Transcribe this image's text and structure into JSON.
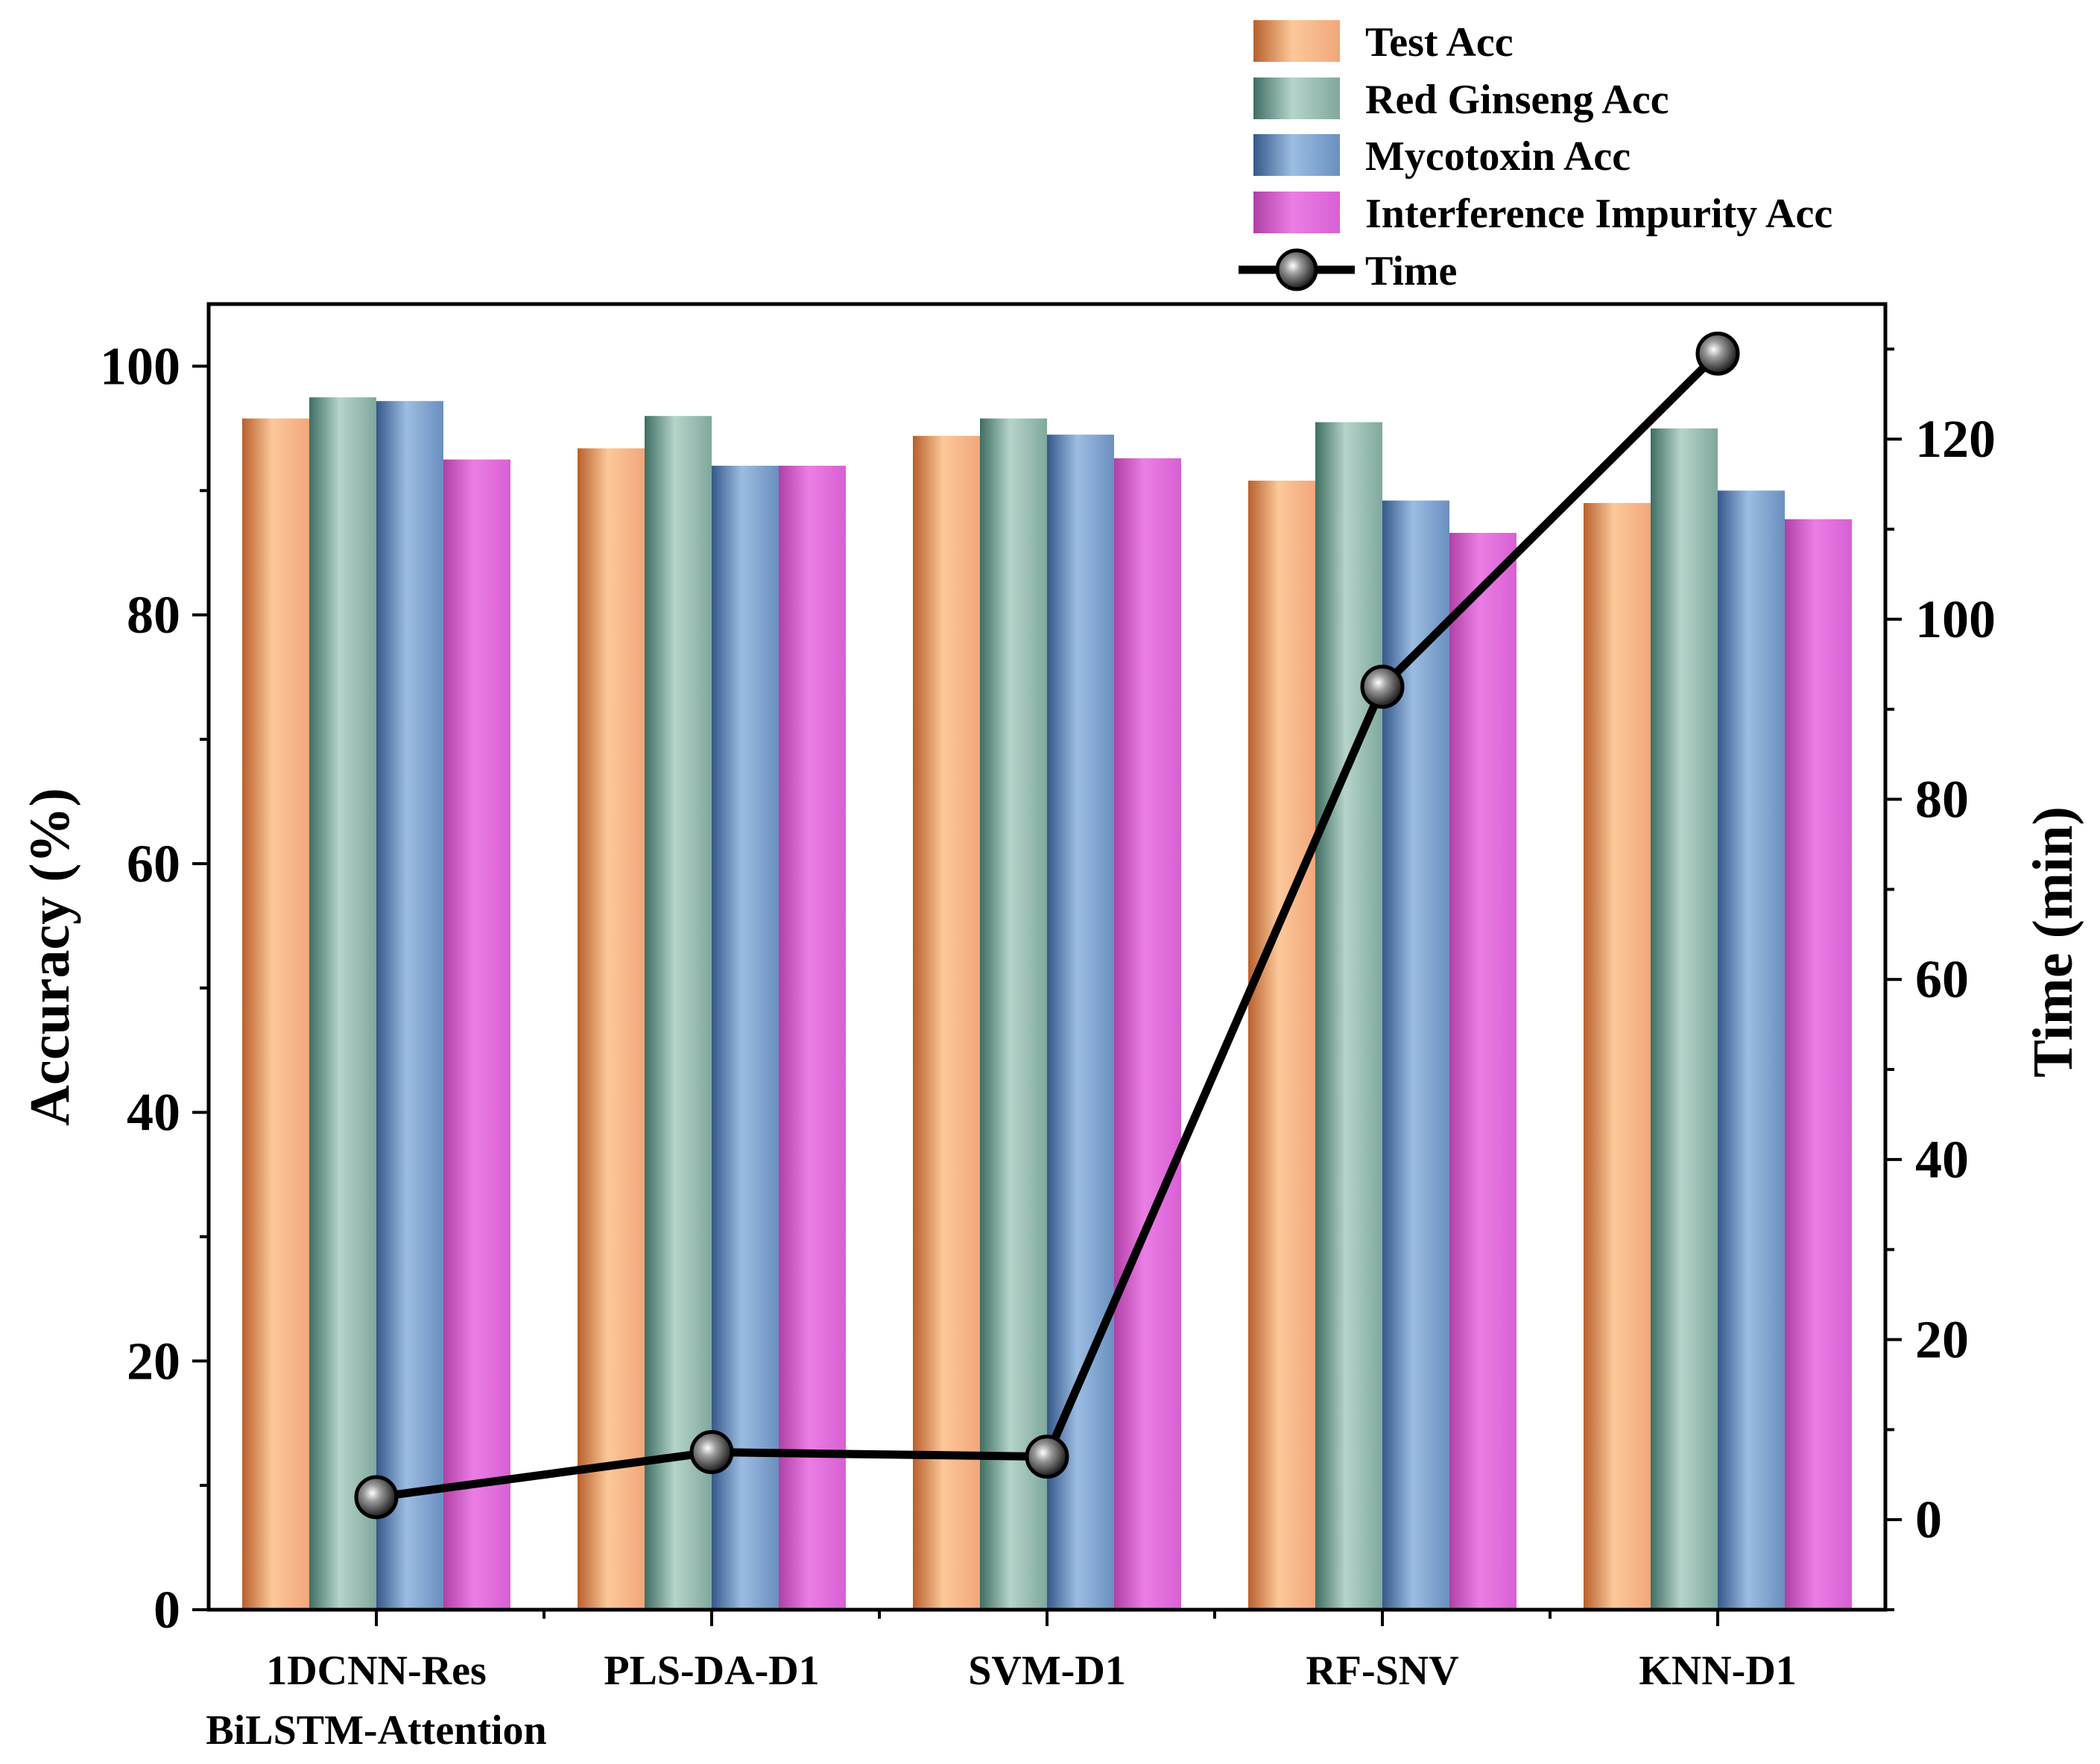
{
  "chart_data": {
    "type": "bar",
    "title": "",
    "categories": [
      [
        "1DCNN-Res",
        "BiLSTM-Attention"
      ],
      [
        "PLS-DA-D1"
      ],
      [
        "SVM-D1"
      ],
      [
        "RF-SNV"
      ],
      [
        "KNN-D1"
      ]
    ],
    "ylabel": "Accuracy (%)",
    "y2label": "Time (min)",
    "ylim": [
      0,
      105
    ],
    "y2lim": [
      -10,
      135
    ],
    "yticks": [
      "0",
      "20",
      "40",
      "60",
      "80",
      "100"
    ],
    "y2ticks": [
      "0",
      "20",
      "40",
      "60",
      "80",
      "100",
      "120"
    ],
    "series": [
      {
        "name": "Test Acc",
        "kind": "bar",
        "axis": "left",
        "values": [
          95.8,
          93.4,
          94.4,
          90.8,
          89.0
        ],
        "colors": {
          "dark": "#b8602c",
          "mid": "#f1a77a",
          "light": "#fcc89a"
        }
      },
      {
        "name": "Red Ginseng Acc",
        "kind": "bar",
        "axis": "left",
        "values": [
          97.5,
          96.0,
          95.8,
          95.5,
          95.0
        ],
        "colors": {
          "dark": "#3f6e63",
          "mid": "#7fa89c",
          "light": "#b6d4cb"
        }
      },
      {
        "name": "Mycotoxin Acc",
        "kind": "bar",
        "axis": "left",
        "values": [
          97.2,
          92.0,
          94.5,
          89.2,
          90.0
        ],
        "colors": {
          "dark": "#36588a",
          "mid": "#6a8fc0",
          "light": "#9cbde2"
        }
      },
      {
        "name": "Interference Impurity Acc",
        "kind": "bar",
        "axis": "left",
        "values": [
          92.5,
          92.0,
          92.6,
          86.6,
          87.7
        ],
        "colors": {
          "dark": "#b040a6",
          "mid": "#d860d4",
          "light": "#ea7ee4"
        }
      },
      {
        "name": "Time",
        "kind": "line",
        "axis": "right",
        "values": [
          2.5,
          7.5,
          7.0,
          92.5,
          129.5
        ],
        "colors": {
          "line": "#000000",
          "marker": "#222222"
        }
      }
    ],
    "legend_position": "top-right, above plot",
    "grid": false
  }
}
